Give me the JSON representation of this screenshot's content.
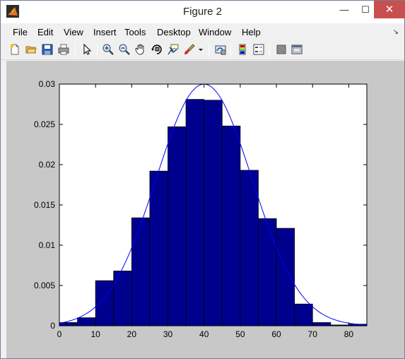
{
  "window": {
    "title": "Figure 2",
    "close_glyph": "✕",
    "minimize_glyph": "—",
    "maximize_glyph": "☐"
  },
  "menu": {
    "items": [
      "File",
      "Edit",
      "View",
      "Insert",
      "Tools",
      "Desktop",
      "Window",
      "Help"
    ],
    "dock_arrow": "↘"
  },
  "toolbar": {
    "icons": [
      "new-figure-icon",
      "open-file-icon",
      "save-icon",
      "print-icon",
      "edit-plot-arrow-icon",
      "zoom-in-icon",
      "zoom-out-icon",
      "pan-hand-icon",
      "rotate-3d-icon",
      "data-cursor-icon",
      "brush-icon",
      "brush-dropdown-icon",
      "link-plot-icon",
      "colorbar-icon",
      "legend-icon",
      "hide-plot-tools-icon",
      "show-plot-tools-icon"
    ]
  },
  "colors": {
    "bar_fill": "#00008f",
    "curve": "#0000ff",
    "figure_bg": "#c8c8c8",
    "axes_bg": "#ffffff"
  },
  "chart_data": {
    "type": "bar",
    "title": "",
    "xlabel": "",
    "ylabel": "",
    "xlim": [
      0,
      85
    ],
    "ylim": [
      0,
      0.03
    ],
    "xticks": [
      0,
      10,
      20,
      30,
      40,
      50,
      60,
      70,
      80
    ],
    "yticks": [
      0,
      0.005,
      0.01,
      0.015,
      0.02,
      0.025,
      0.03
    ],
    "ytick_labels": [
      "0",
      "0.005",
      "0.01",
      "0.015",
      "0.02",
      "0.025",
      "0.03"
    ],
    "bin_edges": [
      0,
      5,
      10,
      15,
      20,
      25,
      30,
      35,
      40,
      45,
      50,
      55,
      60,
      65,
      70,
      75,
      80,
      85
    ],
    "values": [
      0.0004,
      0.001,
      0.0056,
      0.0068,
      0.0134,
      0.0192,
      0.0247,
      0.0281,
      0.028,
      0.0248,
      0.0193,
      0.0133,
      0.0121,
      0.0027,
      0.0004,
      0.0001,
      0.0002
    ],
    "curve": {
      "type": "normal-pdf",
      "mean": 40,
      "std": 13.3,
      "color": "#0000ff"
    },
    "grid": false,
    "legend": "none"
  }
}
